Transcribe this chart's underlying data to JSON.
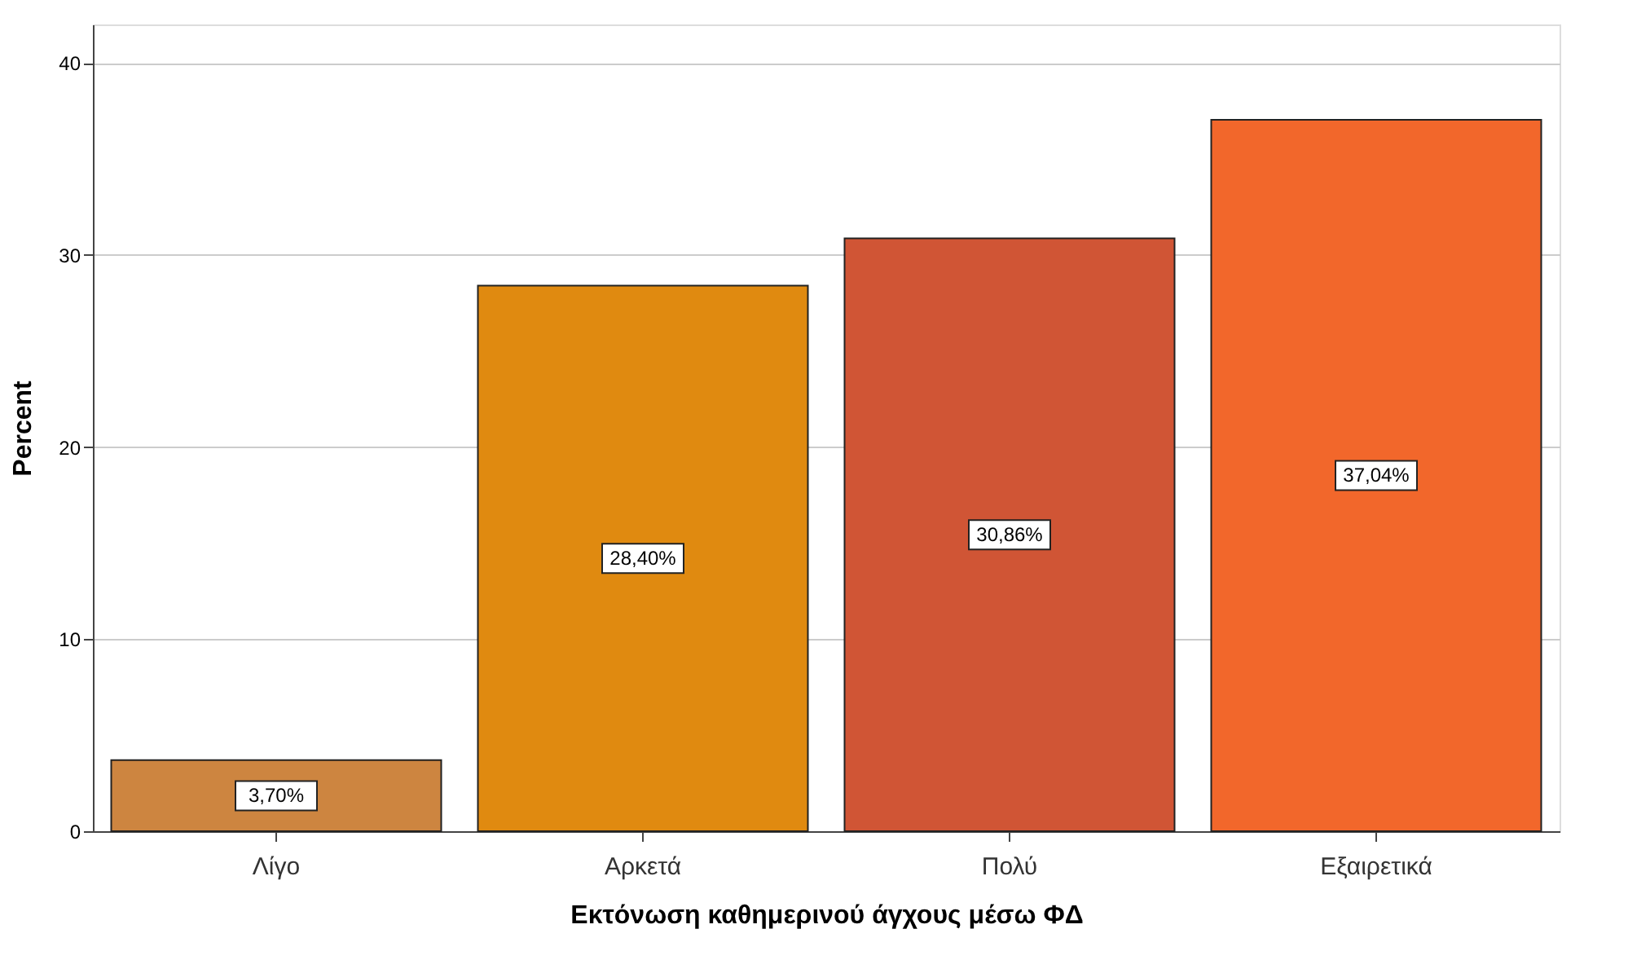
{
  "chart_data": {
    "type": "bar",
    "xlabel": "Εκτόνωση καθημερινού άγχους μέσω ΦΔ",
    "ylabel": "Percent",
    "categories": [
      "Λίγο",
      "Αρκετά",
      "Πολύ",
      "Εξαιρετικά"
    ],
    "values": [
      3.7,
      28.4,
      30.86,
      37.04
    ],
    "colors": [
      "#cd8540",
      "#e08a10",
      "#d05535",
      "#f2672b"
    ],
    "value_labels": [
      "3,70%",
      "28,40%",
      "30,86%",
      "37,04%"
    ],
    "ylim": [
      0,
      42
    ],
    "yticks": [
      0,
      10,
      20,
      30,
      40
    ],
    "grid": "y"
  }
}
